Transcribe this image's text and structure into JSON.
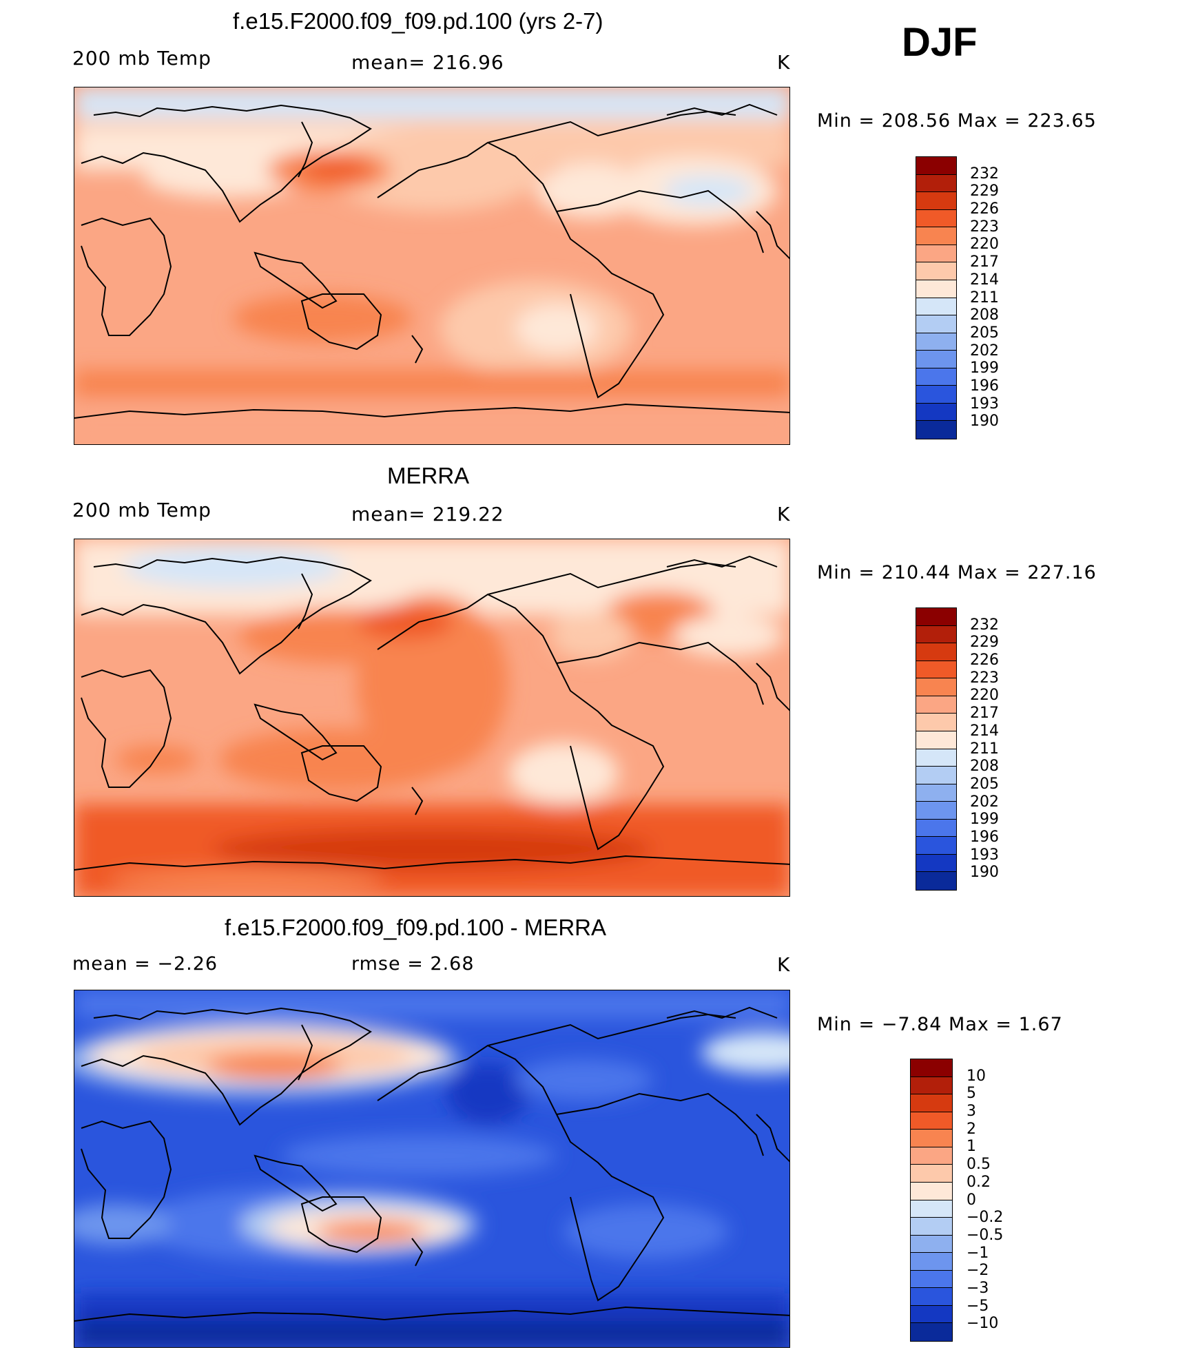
{
  "figure": {
    "season": "DJF"
  },
  "panels": [
    {
      "title": "f.e15.F2000.f09_f09.pd.100 (yrs 2-7)",
      "left_label": "200 mb Temp",
      "center_label": "mean= 216.96",
      "right_label": "K",
      "minmax": "Min  =  208.56  Max  =  223.65",
      "colorbar": {
        "levels": [
          "232",
          "229",
          "226",
          "223",
          "220",
          "217",
          "214",
          "211",
          "208",
          "205",
          "202",
          "199",
          "196",
          "193",
          "190"
        ],
        "colors": [
          "#8b0000",
          "#b21f0a",
          "#d63a10",
          "#f05a28",
          "#f88450",
          "#fba684",
          "#fdc9ab",
          "#fee8d8",
          "#d5e6f8",
          "#b3cdf3",
          "#8eb0ef",
          "#6d95ee",
          "#4b76eb",
          "#2a55dd",
          "#1438c2",
          "#0a2a9a"
        ]
      },
      "palette": "warm"
    },
    {
      "title": "MERRA",
      "left_label": "200 mb Temp",
      "center_label": "mean= 219.22",
      "right_label": "K",
      "minmax": "Min  =  210.44  Max  =  227.16",
      "colorbar": {
        "levels": [
          "232",
          "229",
          "226",
          "223",
          "220",
          "217",
          "214",
          "211",
          "208",
          "205",
          "202",
          "199",
          "196",
          "193",
          "190"
        ],
        "colors": [
          "#8b0000",
          "#b21f0a",
          "#d63a10",
          "#f05a28",
          "#f88450",
          "#fba684",
          "#fdc9ab",
          "#fee8d8",
          "#d5e6f8",
          "#b3cdf3",
          "#8eb0ef",
          "#6d95ee",
          "#4b76eb",
          "#2a55dd",
          "#1438c2",
          "#0a2a9a"
        ]
      },
      "palette": "warm"
    },
    {
      "title": "f.e15.F2000.f09_f09.pd.100 - MERRA",
      "left_label": "mean =    −2.26",
      "center_label": "rmse =     2.68",
      "right_label": "K",
      "minmax": "Min  =   −7.84  Max  =     1.67",
      "colorbar": {
        "levels": [
          "10",
          "5",
          "3",
          "2",
          "1",
          "0.5",
          "0.2",
          "0",
          "−0.2",
          "−0.5",
          "−1",
          "−2",
          "−3",
          "−5",
          "−10"
        ],
        "colors": [
          "#8b0000",
          "#b21f0a",
          "#d63a10",
          "#f05a28",
          "#f88450",
          "#fba684",
          "#fdc9ab",
          "#fee8d8",
          "#d5e6f8",
          "#b3cdf3",
          "#8eb0ef",
          "#6d95ee",
          "#4b76eb",
          "#2a55dd",
          "#1438c2",
          "#0a2a9a"
        ]
      },
      "palette": "cool"
    }
  ]
}
